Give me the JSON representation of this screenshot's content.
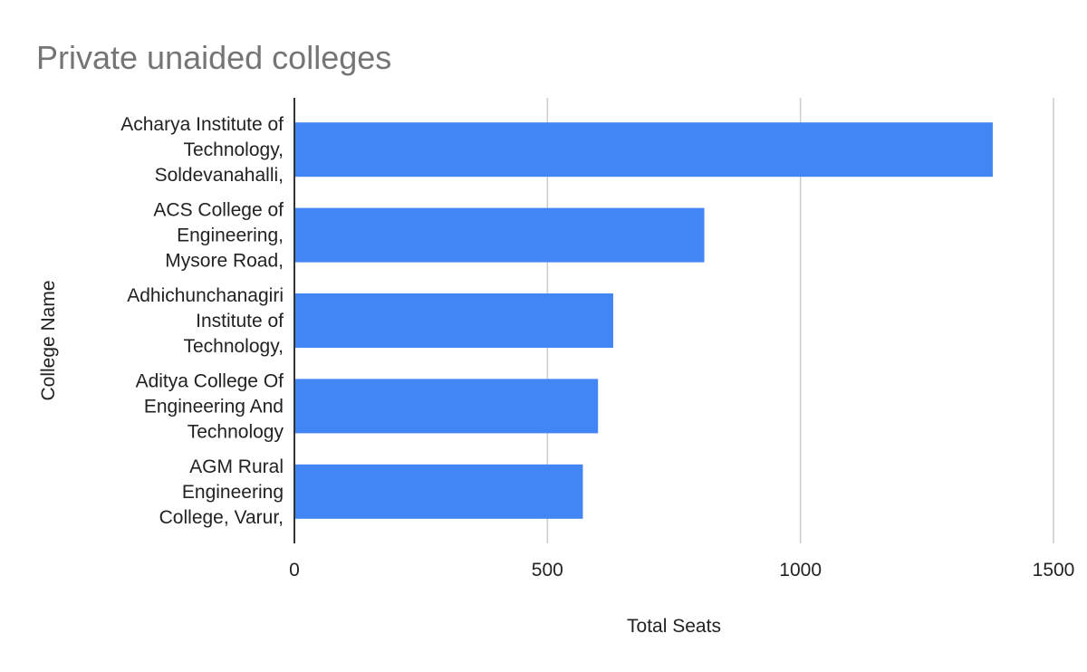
{
  "chart_data": {
    "type": "bar",
    "orientation": "horizontal",
    "title": "Private unaided colleges",
    "xlabel": "Total Seats",
    "ylabel": "College Name",
    "categories": [
      [
        "Acharya Institute of",
        "Technology,",
        "Soldevanahalli,"
      ],
      [
        "ACS College of",
        "Engineering,",
        "Mysore Road,"
      ],
      [
        "Adhichunchanagiri",
        "Institute of",
        "Technology,"
      ],
      [
        "Aditya College Of",
        "Engineering And",
        "Technology"
      ],
      [
        "AGM Rural",
        "Engineering",
        "College, Varur,"
      ]
    ],
    "values": [
      1380,
      810,
      630,
      600,
      570
    ],
    "xlim": [
      0,
      1500
    ],
    "xticks": [
      "0",
      "500",
      "1000",
      "1500"
    ],
    "grid": true,
    "legend": "none",
    "bar_color": "#4285f4"
  }
}
